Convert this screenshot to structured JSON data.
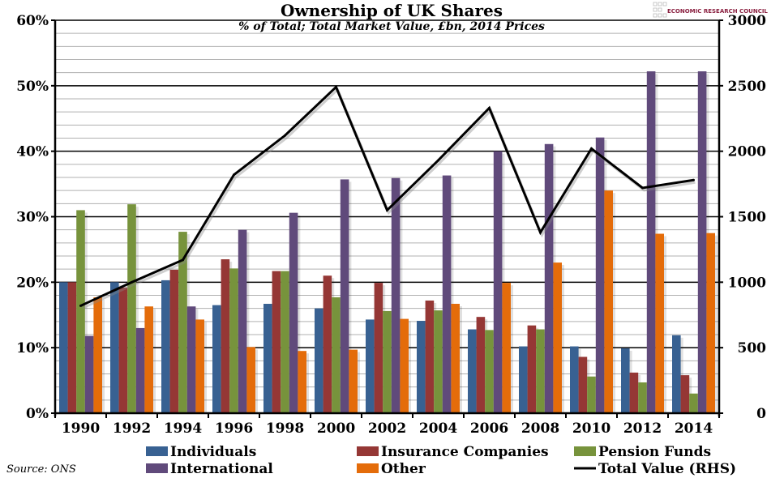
{
  "chart_data": {
    "type": "bar",
    "title": "Ownership of UK Shares",
    "subtitle": "% of Total; Total Market Value, £bn, 2014 Prices",
    "source": "Source: ONS",
    "logo": "ECONOMIC RESEARCH COUNCIL",
    "categories": [
      "1990",
      "1992",
      "1994",
      "1996",
      "1998",
      "2000",
      "2002",
      "2004",
      "2006",
      "2008",
      "2010",
      "2012",
      "2014"
    ],
    "ylim": [
      0,
      60
    ],
    "y_ticks": [
      "0%",
      "10%",
      "20%",
      "30%",
      "40%",
      "50%",
      "60%"
    ],
    "y2lim": [
      0,
      3000
    ],
    "y2_ticks": [
      "0",
      "500",
      "1000",
      "1500",
      "2000",
      "2500",
      "3000"
    ],
    "grid": true,
    "legend_position": "bottom",
    "series": [
      {
        "name": "Individuals",
        "color": "#386192",
        "axis": "left",
        "values": [
          20,
          20,
          20.3,
          16.5,
          16.7,
          16,
          14.3,
          14.1,
          12.8,
          10.2,
          10.2,
          9.9,
          11.9
        ]
      },
      {
        "name": "Insurance Companies",
        "color": "#953735",
        "axis": "left",
        "values": [
          20,
          19.2,
          21.9,
          23.5,
          21.7,
          21,
          19.9,
          17.2,
          14.7,
          13.4,
          8.6,
          6.2,
          5.8
        ]
      },
      {
        "name": "Pension Funds",
        "color": "#77933c",
        "axis": "left",
        "values": [
          31,
          31.9,
          27.7,
          22.1,
          21.7,
          17.7,
          15.6,
          15.7,
          12.7,
          12.8,
          5.6,
          4.7,
          3
        ]
      },
      {
        "name": "International",
        "color": "#604a7b",
        "axis": "left",
        "values": [
          11.8,
          13,
          16.3,
          28,
          30.6,
          35.7,
          35.9,
          36.3,
          40,
          41.1,
          42.1,
          52.2,
          52.2
        ]
      },
      {
        "name": "Other",
        "color": "#e46c0a",
        "axis": "left",
        "values": [
          17.7,
          16.3,
          14.3,
          10.1,
          9.5,
          9.7,
          14.4,
          16.7,
          19.9,
          23,
          34,
          27.4,
          27.5
        ]
      },
      {
        "name": "Total Value (RHS)",
        "color": "#000000",
        "type": "line",
        "axis": "right",
        "values": [
          820,
          1000,
          1170,
          1820,
          2120,
          2490,
          1550,
          1930,
          2330,
          1380,
          2020,
          1720,
          1780
        ]
      }
    ]
  }
}
